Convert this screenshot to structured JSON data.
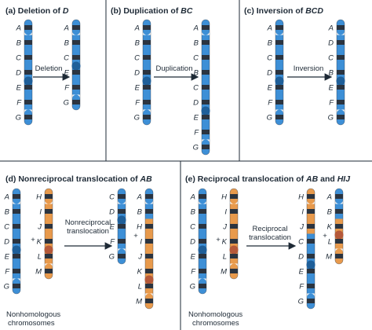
{
  "panels": [
    {
      "id": "a",
      "title_prefix": "(a) Deletion of ",
      "title_em": "D",
      "arrow_lines": [
        "Deletion"
      ],
      "notes": [],
      "chromosomes": [
        {
          "color": "blue",
          "labels": [
            "A",
            "B",
            "C",
            "D",
            "E",
            "F",
            "G"
          ]
        },
        {
          "color": "blue",
          "labels": [
            "A",
            "B",
            "C",
            "E",
            "F",
            "G"
          ]
        }
      ]
    },
    {
      "id": "b",
      "title_prefix": "(b) Duplication of ",
      "title_em": "BC",
      "arrow_lines": [
        "Duplication"
      ],
      "notes": [],
      "chromosomes": [
        {
          "color": "blue",
          "labels": [
            "A",
            "B",
            "C",
            "D",
            "E",
            "F",
            "G"
          ]
        },
        {
          "color": "blue",
          "labels": [
            "A",
            "B",
            "C",
            "B",
            "C",
            "D",
            "E",
            "F",
            "G"
          ]
        }
      ]
    },
    {
      "id": "c",
      "title_prefix": "(c) Inversion of ",
      "title_em": "BCD",
      "arrow_lines": [
        "Inversion"
      ],
      "notes": [],
      "chromosomes": [
        {
          "color": "blue",
          "labels": [
            "A",
            "B",
            "C",
            "D",
            "E",
            "F",
            "G"
          ]
        },
        {
          "color": "blue",
          "labels": [
            "A",
            "D",
            "C",
            "B",
            "E",
            "F",
            "G"
          ]
        }
      ]
    },
    {
      "id": "d",
      "title_prefix": "(d) Nonreciprocal translocation of ",
      "title_em": "AB",
      "arrow_lines": [
        "Nonreciprocal",
        "translocation"
      ],
      "plus": "+",
      "notes": [
        "Nonhomologous",
        "chromosomes"
      ],
      "chromosomes": [
        {
          "color": "blue",
          "labels": [
            "A",
            "B",
            "C",
            "D",
            "E",
            "F",
            "G"
          ]
        },
        {
          "color": "orange",
          "labels": [
            "H",
            "I",
            "J",
            "K",
            "L",
            "M"
          ]
        },
        {
          "color": "blue",
          "labels": [
            "C",
            "D",
            "E",
            "F",
            "G"
          ]
        },
        {
          "color": "mixed",
          "labels": [
            "A",
            "B",
            "H",
            "I",
            "J",
            "K",
            "L",
            "M"
          ]
        }
      ]
    },
    {
      "id": "e",
      "title_prefix": "(e) Reciprocal translocation of ",
      "title_em": "AB",
      "title_mid": " and ",
      "title_em2": "HIJ",
      "arrow_lines": [
        "Reciprocal",
        "translocation"
      ],
      "plus": "+",
      "notes": [
        "Nonhomologous",
        "chromosomes"
      ],
      "chromosomes": [
        {
          "color": "blue",
          "labels": [
            "A",
            "B",
            "C",
            "D",
            "E",
            "F",
            "G"
          ]
        },
        {
          "color": "orange",
          "labels": [
            "H",
            "I",
            "J",
            "K",
            "L",
            "M"
          ]
        },
        {
          "color": "mixed",
          "labels": [
            "H",
            "I",
            "J",
            "C",
            "D",
            "E",
            "F",
            "G"
          ]
        },
        {
          "color": "mixed",
          "labels": [
            "A",
            "B",
            "K",
            "L",
            "M"
          ]
        }
      ]
    }
  ],
  "colors": {
    "blue": "#3d8fd6",
    "orange": "#e89a4c",
    "band": "#2b3440",
    "centromere_blue": "#1f5f99",
    "centromere_orange": "#b5593a",
    "panel_border": "#1e2a36"
  }
}
